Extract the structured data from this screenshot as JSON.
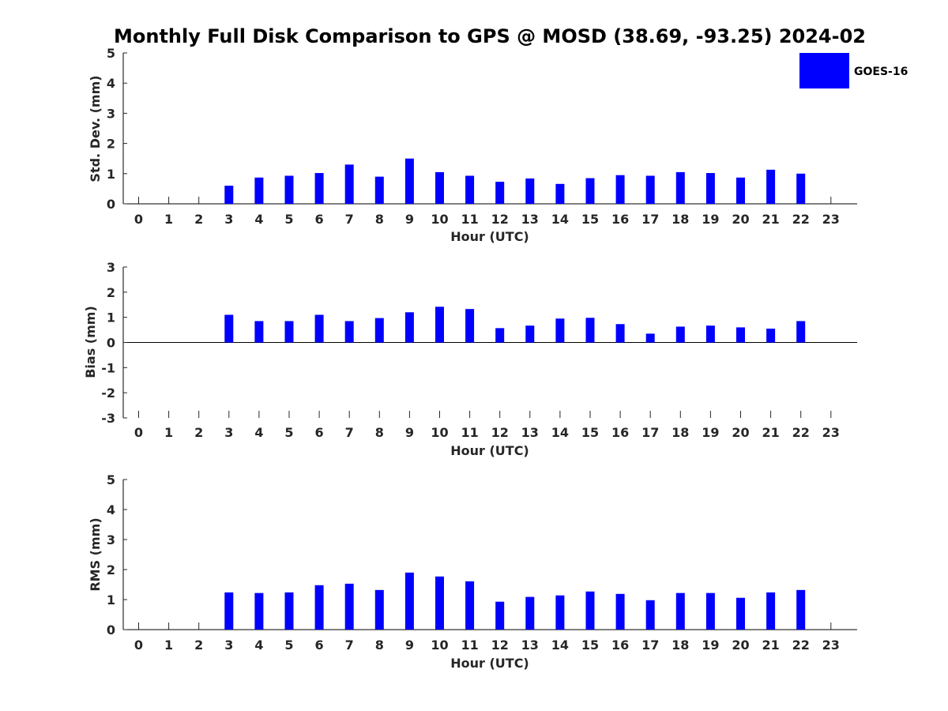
{
  "title": "Monthly Full Disk Comparison to GPS @ MOSD (38.69, -93.25) 2024-02",
  "legend": {
    "label": "GOES-16",
    "color": "#0000ff"
  },
  "chart_data": [
    {
      "type": "bar",
      "title": "Monthly Full Disk Comparison to GPS @ MOSD (38.69, -93.25) 2024-02",
      "xlabel": "Hour (UTC)",
      "ylabel": "Std. Dev. (mm)",
      "categories": [
        "0",
        "1",
        "2",
        "3",
        "4",
        "5",
        "6",
        "7",
        "8",
        "9",
        "10",
        "11",
        "12",
        "13",
        "14",
        "15",
        "16",
        "17",
        "18",
        "19",
        "20",
        "21",
        "22",
        "23"
      ],
      "ylim": [
        0,
        5
      ],
      "yticks": [
        0,
        1,
        2,
        3,
        4,
        5
      ],
      "series": [
        {
          "name": "GOES-16",
          "color": "#0000ff",
          "values": [
            null,
            null,
            null,
            0.6,
            0.87,
            0.93,
            1.02,
            1.3,
            0.9,
            1.5,
            1.05,
            0.93,
            0.73,
            0.84,
            0.66,
            0.85,
            0.95,
            0.93,
            1.05,
            1.02,
            0.87,
            1.13,
            1.0,
            null
          ]
        }
      ]
    },
    {
      "type": "bar",
      "xlabel": "Hour (UTC)",
      "ylabel": "Bias (mm)",
      "categories": [
        "0",
        "1",
        "2",
        "3",
        "4",
        "5",
        "6",
        "7",
        "8",
        "9",
        "10",
        "11",
        "12",
        "13",
        "14",
        "15",
        "16",
        "17",
        "18",
        "19",
        "20",
        "21",
        "22",
        "23"
      ],
      "ylim": [
        -3,
        3
      ],
      "yticks": [
        -3,
        -2,
        -1,
        0,
        1,
        2,
        3
      ],
      "series": [
        {
          "name": "GOES-16",
          "color": "#0000ff",
          "values": [
            null,
            null,
            null,
            1.1,
            0.85,
            0.85,
            1.1,
            0.85,
            0.97,
            1.2,
            1.42,
            1.33,
            0.57,
            0.67,
            0.95,
            0.98,
            0.73,
            0.35,
            0.63,
            0.67,
            0.6,
            0.55,
            0.85,
            null
          ]
        }
      ]
    },
    {
      "type": "bar",
      "xlabel": "Hour (UTC)",
      "ylabel": "RMS (mm)",
      "categories": [
        "0",
        "1",
        "2",
        "3",
        "4",
        "5",
        "6",
        "7",
        "8",
        "9",
        "10",
        "11",
        "12",
        "13",
        "14",
        "15",
        "16",
        "17",
        "18",
        "19",
        "20",
        "21",
        "22",
        "23"
      ],
      "ylim": [
        0,
        5
      ],
      "yticks": [
        0,
        1,
        2,
        3,
        4,
        5
      ],
      "series": [
        {
          "name": "GOES-16",
          "color": "#0000ff",
          "values": [
            null,
            null,
            null,
            1.24,
            1.22,
            1.24,
            1.48,
            1.53,
            1.32,
            1.9,
            1.77,
            1.61,
            0.93,
            1.09,
            1.14,
            1.27,
            1.19,
            0.98,
            1.22,
            1.22,
            1.06,
            1.24,
            1.32,
            null
          ]
        }
      ]
    }
  ]
}
